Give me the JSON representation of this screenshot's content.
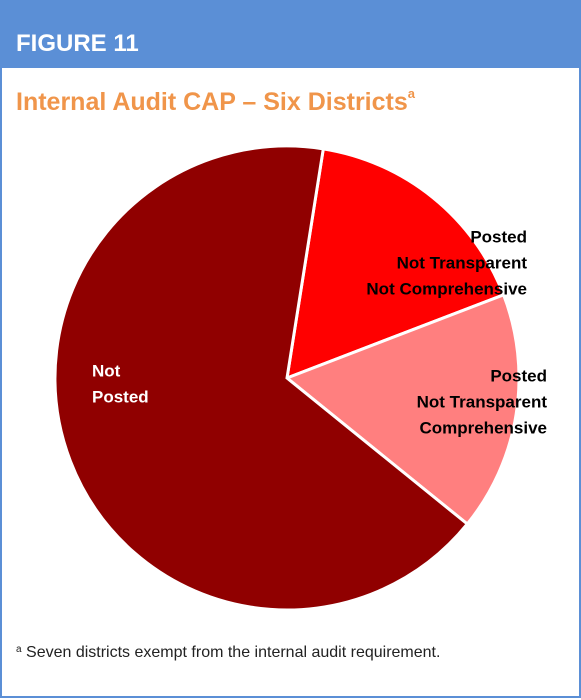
{
  "chart_data": {
    "type": "pie",
    "label": "FIGURE 11",
    "title": "Internal Audit CAP – Six Districts",
    "title_superscript": "a",
    "categories": [
      [
        "Posted",
        "Not Transparent",
        "Not Comprehensive"
      ],
      [
        "Posted",
        "Not Transparent",
        "Comprehensive"
      ],
      [
        "Not",
        "Posted"
      ]
    ],
    "values": [
      1,
      1,
      4
    ],
    "colors": [
      "#ff0000",
      "#ff7f7f",
      "#900000"
    ],
    "footnote_marker": "a",
    "footnote": "Seven districts exempt from the internal audit requirement."
  }
}
